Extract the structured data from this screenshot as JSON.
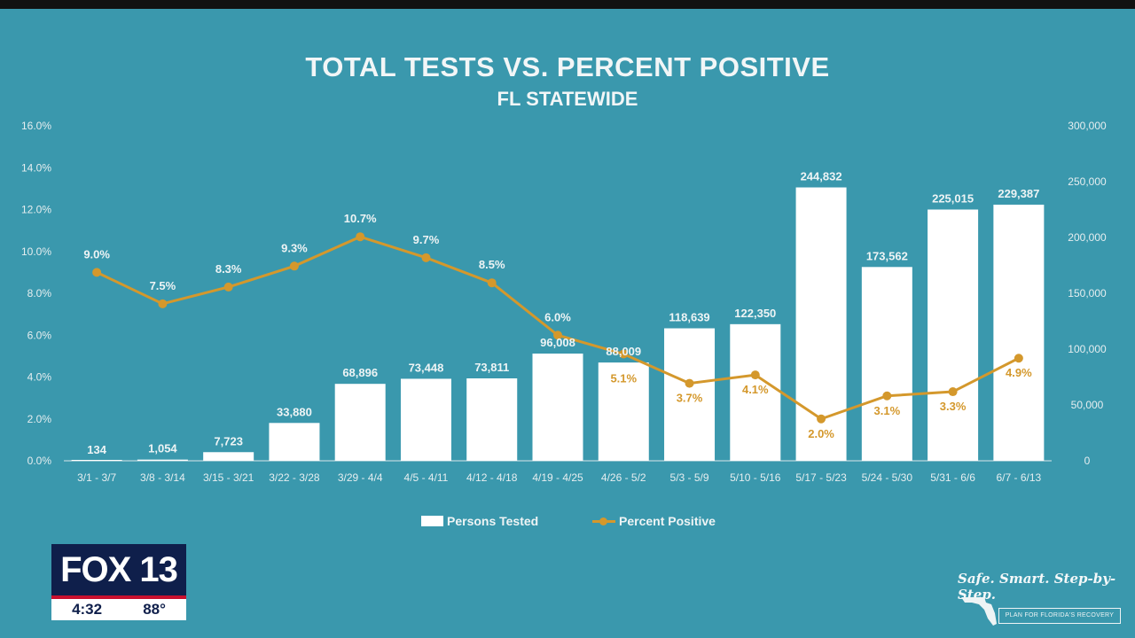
{
  "chart_data": {
    "type": "bar+line",
    "title": "TOTAL TESTS VS. PERCENT POSITIVE",
    "subtitle": "FL STATEWIDE",
    "categories": [
      "3/1 - 3/7",
      "3/8 - 3/14",
      "3/15 - 3/21",
      "3/22 - 3/28",
      "3/29 - 4/4",
      "4/5 - 4/11",
      "4/12 - 4/18",
      "4/19 - 4/25",
      "4/26 - 5/2",
      "5/3 - 5/9",
      "5/10 - 5/16",
      "5/17 - 5/23",
      "5/24 - 5/30",
      "5/31 - 6/6",
      "6/7 - 6/13"
    ],
    "series": [
      {
        "name": "Persons Tested",
        "type": "bar",
        "axis": "right",
        "values": [
          134,
          1054,
          7723,
          33880,
          68896,
          73448,
          73811,
          96008,
          88009,
          118639,
          122350,
          244832,
          173562,
          225015,
          229387
        ],
        "labels": [
          "134",
          "1,054",
          "7,723",
          "33,880",
          "68,896",
          "73,448",
          "73,811",
          "96,008",
          "88,009",
          "118,639",
          "122,350",
          "244,832",
          "173,562",
          "225,015",
          "229,387"
        ],
        "color": "#ffffff"
      },
      {
        "name": "Percent Positive",
        "type": "line",
        "axis": "left",
        "values": [
          9.0,
          7.5,
          8.3,
          9.3,
          10.7,
          9.7,
          8.5,
          6.0,
          5.1,
          3.7,
          4.1,
          2.0,
          3.1,
          3.3,
          4.9
        ],
        "labels": [
          "9.0%",
          "7.5%",
          "8.3%",
          "9.3%",
          "10.7%",
          "9.7%",
          "8.5%",
          "6.0%",
          "5.1%",
          "3.7%",
          "4.1%",
          "2.0%",
          "3.1%",
          "3.3%",
          "4.9%"
        ],
        "color": "#d4982c"
      }
    ],
    "y_left": {
      "min": 0,
      "max": 16,
      "ticks": [
        "0.0%",
        "2.0%",
        "4.0%",
        "6.0%",
        "8.0%",
        "10.0%",
        "12.0%",
        "14.0%",
        "16.0%"
      ]
    },
    "y_right": {
      "min": 0,
      "max": 300000,
      "ticks": [
        "0",
        "50,000",
        "100,000",
        "150,000",
        "200,000",
        "250,000",
        "300,000"
      ]
    },
    "legend_position": "bottom",
    "grid": false
  },
  "legend": {
    "bars": "Persons Tested",
    "line": "Percent Positive"
  },
  "badge": {
    "logo": "FOX 13",
    "time": "4:32",
    "temp": "88°"
  },
  "brand": {
    "slogan": "Safe. Smart. Step-by-Step.",
    "sub": "PLAN FOR FLORIDA'S RECOVERY"
  },
  "colors": {
    "background": "#3a98ad",
    "bar": "#ffffff",
    "line": "#d4982c"
  }
}
